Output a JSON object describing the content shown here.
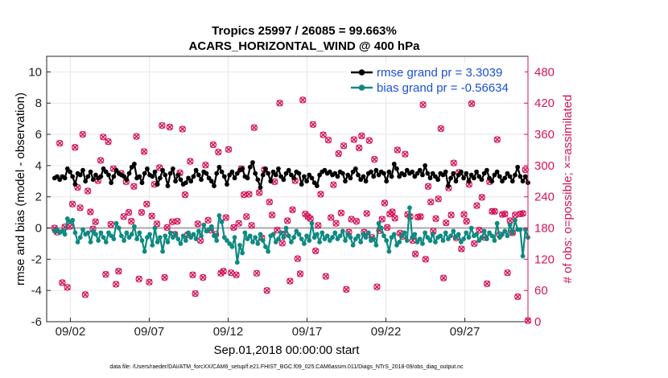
{
  "chart_data": {
    "type": "line",
    "title_line1": "Tropics 25997 / 26085 = 99.663%",
    "title_line2": "ACARS_HORIZONTAL_WIND @ 400 hPa",
    "ylabel": "rmse and bias (model - observation)",
    "ylabel_right": "# of obs: o=possible; ×=assimilated",
    "xlabel": "Sep.01,2018 00:00:00 start",
    "footnote": "data file: /Users/raeder/DAI/ATM_forcXX/CAM6_setup/f.e21.FHIST_BGC.f09_025.CAM6assim.011/Diags_NTrS_2018-09/obs_diag_output.nc",
    "ylim": [
      -6,
      11
    ],
    "yticks": [
      "-6",
      "-4",
      "-2",
      "0",
      "2",
      "4",
      "6",
      "8",
      "10"
    ],
    "ylim_right": [
      0,
      510
    ],
    "yticks_right": [
      "0",
      "60",
      "120",
      "180",
      "240",
      "300",
      "360",
      "420",
      "480"
    ],
    "xlim": [
      0.5,
      31
    ],
    "xticks": [
      {
        "day": 2,
        "label": "09/02"
      },
      {
        "day": 7,
        "label": "09/07"
      },
      {
        "day": 12,
        "label": "09/12"
      },
      {
        "day": 17,
        "label": "09/17"
      },
      {
        "day": 22,
        "label": "09/22"
      },
      {
        "day": 27,
        "label": "09/27"
      }
    ],
    "zero_line": 0,
    "legend": [
      {
        "label": "rmse grand pr = 3.3039",
        "color": "#000000"
      },
      {
        "label": "bias grand pr = -0.56634",
        "color": "#0e8a82"
      }
    ],
    "series": [
      {
        "name": "rmse",
        "color": "#000000",
        "values": [
          3.2,
          3.3,
          3.1,
          3.3,
          3.2,
          3.8,
          3.6,
          3.3,
          2.8,
          3.5,
          3.4,
          3.7,
          3.0,
          3.3,
          3.6,
          3.1,
          3.4,
          3.2,
          3.3,
          3.8,
          3.6,
          3.4,
          2.9,
          3.3,
          3.7,
          3.5,
          3.4,
          3.3,
          3.1,
          3.5,
          3.9,
          4.1,
          3.2,
          3.3,
          2.9,
          3.5,
          3.8,
          3.4,
          3.3,
          3.6,
          2.8,
          3.2,
          3.7,
          3.4,
          2.7,
          3.5,
          3.8,
          3.0,
          3.4,
          3.1,
          2.8,
          2.9,
          3.2,
          3.0,
          3.3,
          3.7,
          3.4,
          3.1,
          3.6,
          3.5,
          3.2,
          3.0,
          2.7,
          3.5,
          3.9,
          3.6,
          3.3,
          2.8,
          3.4,
          3.6,
          3.2,
          3.5,
          3.7,
          3.8,
          3.3,
          3.2,
          3.9,
          4.2,
          3.5,
          3.1,
          2.6,
          3.4,
          3.8,
          3.5,
          3.0,
          3.6,
          3.4,
          3.8,
          3.3,
          3.1,
          3.5,
          3.7,
          3.4,
          3.2,
          3.6,
          3.5,
          2.8,
          3.3,
          3.0,
          3.4,
          3.2,
          2.9,
          2.7,
          3.4,
          3.6,
          3.7,
          3.5,
          3.6,
          3.4,
          3.5,
          3.3,
          3.6,
          3.5,
          3.0,
          3.4,
          3.2,
          3.6,
          3.8,
          3.4,
          3.1,
          3.3,
          3.0,
          3.5,
          3.6,
          3.3,
          3.7,
          3.4,
          3.6,
          3.5,
          3.0,
          3.6,
          3.3,
          4.1,
          3.8,
          3.3,
          3.5,
          3.4,
          3.7,
          3.5,
          3.6,
          3.3,
          3.5,
          3.7,
          3.4,
          4.0,
          3.5,
          3.2,
          3.5,
          3.3,
          3.1,
          3.5,
          3.4,
          3.6,
          2.7,
          3.2,
          3.5,
          3.0,
          3.4,
          3.6,
          3.2,
          3.5,
          3.0,
          3.4,
          3.2,
          3.6,
          3.3,
          3.1,
          3.5,
          3.7,
          3.2,
          3.0,
          3.4,
          3.6,
          3.3,
          3.0,
          3.2,
          3.5,
          3.3,
          3.0,
          3.4,
          3.9,
          3.3,
          3.0,
          3.3,
          2.9
        ]
      },
      {
        "name": "bias",
        "color": "#0e8a82",
        "values": [
          -0.2,
          -0.1,
          -0.3,
          -0.2,
          -0.4,
          0.6,
          0.4,
          0.5,
          -0.3,
          -0.9,
          -0.6,
          -0.1,
          -0.4,
          -0.3,
          -0.9,
          -0.2,
          -0.4,
          -0.8,
          -0.3,
          -0.6,
          -0.9,
          -0.3,
          -0.5,
          -0.7,
          0.3,
          0.0,
          -0.5,
          -0.8,
          -0.3,
          -0.6,
          -0.4,
          0.1,
          -0.7,
          -0.3,
          -0.8,
          -1.5,
          -0.6,
          -0.4,
          -1.1,
          0.0,
          -0.9,
          -0.6,
          -1.5,
          -0.5,
          -0.9,
          -0.3,
          -0.6,
          -0.4,
          -0.7,
          -1.0,
          -0.5,
          -0.8,
          -0.3,
          -0.6,
          -0.4,
          -0.7,
          -0.2,
          -0.5,
          0.2,
          -0.2,
          -0.1,
          0.1,
          -0.5,
          -0.8,
          0.8,
          0.4,
          -0.6,
          -0.8,
          -1.0,
          -1.2,
          -0.6,
          -2.2,
          -1.1,
          -1.6,
          -0.3,
          -0.7,
          -0.5,
          -0.9,
          -0.6,
          -1.0,
          -0.4,
          -0.8,
          -1.2,
          -1.5,
          -0.5,
          -0.4,
          -0.9,
          -0.7,
          -0.3,
          -0.6,
          0.0,
          -0.5,
          -0.9,
          -0.6,
          -0.2,
          -0.4,
          -0.7,
          -1.0,
          -0.5,
          -0.8,
          0.3,
          -0.6,
          -0.4,
          -0.9,
          -0.3,
          -0.7,
          -0.5,
          -0.8,
          -0.6,
          -0.3,
          -0.7,
          -0.5,
          -0.2,
          -0.8,
          -0.4,
          -0.6,
          -1.1,
          -0.7,
          -0.5,
          -0.9,
          -0.4,
          -0.6,
          -0.3,
          -0.8,
          -0.7,
          -1.1,
          0.3,
          0.0,
          -0.5,
          -0.8,
          -1.5,
          -0.6,
          -0.4,
          -1.1,
          -0.9,
          -0.5,
          -0.3,
          -0.8,
          1.3,
          -0.6,
          -0.4,
          -0.9,
          -0.7,
          -1.0,
          -0.3,
          -0.6,
          -0.8,
          -0.4,
          -0.9,
          -0.6,
          -0.5,
          -0.8,
          -0.3,
          -0.7,
          -0.5,
          -0.2,
          -0.6,
          -0.4,
          -0.9,
          -0.7,
          -0.3,
          -0.6,
          0.0,
          -0.5,
          -0.4,
          -0.8,
          -0.6,
          -0.2,
          -0.7,
          -0.3,
          -0.5,
          -0.8,
          0.3,
          -0.6,
          -0.4,
          -0.2,
          -0.5,
          0.2,
          -0.3,
          0.5,
          -0.1,
          -0.1,
          -1.8,
          -0.1,
          -0.6
        ]
      }
    ],
    "obs_possible": [
      180,
      172,
      343,
      75,
      182,
      66,
      183,
      226,
      335,
      258,
      219,
      360,
      52,
      251,
      211,
      178,
      192,
      271,
      310,
      355,
      91,
      346,
      187,
      294,
      72,
      97,
      285,
      202,
      269,
      210,
      193,
      260,
      356,
      82,
      210,
      327,
      226,
      76,
      203,
      264,
      188,
      296,
      377,
      85,
      181,
      374,
      192,
      168,
      193,
      286,
      370,
      244,
      167,
      308,
      90,
      54,
      188,
      156,
      85,
      301,
      195,
      176,
      340,
      168,
      326,
      93,
      97,
      200,
      331,
      94,
      181,
      90,
      189,
      294,
      244,
      202,
      245,
      185,
      373,
      93,
      248,
      161,
      292,
      60,
      230,
      205,
      269,
      176,
      420,
      151,
      169,
      194,
      78,
      215,
      271,
      121,
      92,
      426,
      207,
      202,
      198,
      379,
      136,
      185,
      245,
      359,
      87,
      349,
      200,
      263,
      189,
      323,
      209,
      338,
      62,
      172,
      197,
      350,
      193,
      334,
      357,
      172,
      208,
      348,
      162,
      312,
      67,
      175,
      197,
      228,
      181,
      207,
      211,
      199,
      330,
      170,
      164,
      322,
      206,
      202,
      156,
      130,
      201,
      202,
      417,
      120,
      260,
      230,
      174,
      198,
      236,
      371,
      84,
      190,
      257,
      205,
      305,
      161,
      287,
      140,
      206,
      193,
      264,
      419,
      150,
      223,
      176,
      239,
      162,
      73,
      269,
      212,
      212,
      350,
      167,
      206,
      207,
      94,
      194,
      171,
      205,
      48,
      207,
      208,
      292,
      2
    ],
    "obs_assimilated": [
      180,
      172,
      343,
      75,
      182,
      66,
      183,
      226,
      335,
      258,
      219,
      360,
      52,
      251,
      211,
      178,
      192,
      271,
      310,
      355,
      91,
      346,
      187,
      294,
      72,
      97,
      285,
      202,
      269,
      210,
      193,
      260,
      356,
      82,
      210,
      327,
      226,
      76,
      203,
      264,
      188,
      296,
      377,
      85,
      181,
      374,
      192,
      168,
      193,
      286,
      370,
      244,
      167,
      308,
      90,
      54,
      188,
      156,
      85,
      301,
      195,
      176,
      340,
      168,
      326,
      93,
      97,
      200,
      331,
      94,
      181,
      90,
      189,
      294,
      244,
      202,
      245,
      185,
      373,
      93,
      248,
      161,
      292,
      60,
      230,
      205,
      269,
      176,
      420,
      151,
      169,
      194,
      78,
      215,
      271,
      121,
      92,
      426,
      207,
      202,
      198,
      379,
      136,
      185,
      245,
      359,
      87,
      349,
      200,
      263,
      189,
      323,
      209,
      338,
      62,
      172,
      197,
      350,
      193,
      334,
      357,
      172,
      208,
      348,
      162,
      312,
      67,
      175,
      197,
      228,
      181,
      207,
      211,
      199,
      330,
      170,
      164,
      322,
      206,
      202,
      156,
      130,
      201,
      202,
      417,
      120,
      260,
      230,
      174,
      198,
      236,
      371,
      84,
      190,
      257,
      205,
      305,
      161,
      287,
      140,
      206,
      193,
      264,
      419,
      150,
      223,
      176,
      239,
      162,
      73,
      269,
      212,
      212,
      350,
      167,
      206,
      207,
      94,
      194,
      171,
      205,
      48,
      207,
      208,
      292,
      2
    ]
  }
}
